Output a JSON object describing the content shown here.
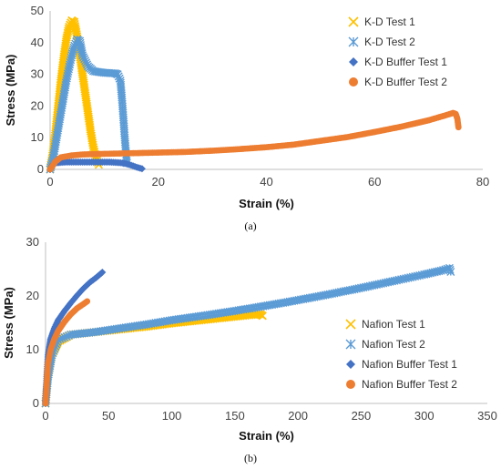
{
  "chart_data": [
    {
      "type": "scatter",
      "caption": "(a)",
      "xlabel": "Strain (%)",
      "ylabel": "Stress (MPa)",
      "xlim": [
        0,
        80
      ],
      "ylim": [
        0,
        50
      ],
      "x_ticks": [
        0,
        20,
        40,
        60,
        80
      ],
      "y_ticks": [
        0,
        10,
        20,
        30,
        40,
        50
      ],
      "grid": false,
      "legend_position": "top-right",
      "series": [
        {
          "name": "K-D Test 1",
          "marker": "x",
          "color": "#FFC000",
          "points": [
            [
              0,
              0
            ],
            [
              0.5,
              5
            ],
            [
              1,
              12
            ],
            [
              1.5,
              20
            ],
            [
              2,
              28
            ],
            [
              2.5,
              35
            ],
            [
              3,
              41
            ],
            [
              3.5,
              45
            ],
            [
              4,
              47
            ],
            [
              4.5,
              46.5
            ],
            [
              5,
              42
            ],
            [
              5.5,
              36
            ],
            [
              6,
              30
            ],
            [
              6.5,
              24
            ],
            [
              7,
              18
            ],
            [
              7.5,
              12
            ],
            [
              8,
              7
            ],
            [
              8.5,
              3.5
            ],
            [
              9,
              1.5
            ]
          ]
        },
        {
          "name": "K-D Test 2",
          "marker": "asterisk",
          "color": "#5B9BD5",
          "points": [
            [
              0,
              0
            ],
            [
              0.5,
              3
            ],
            [
              1,
              8
            ],
            [
              2,
              18
            ],
            [
              3,
              28
            ],
            [
              4,
              36
            ],
            [
              4.5,
              39
            ],
            [
              5,
              41
            ],
            [
              5.5,
              40.5
            ],
            [
              6,
              36
            ],
            [
              7,
              32.5
            ],
            [
              8,
              31
            ],
            [
              9,
              30.7
            ],
            [
              10,
              30.5
            ],
            [
              11,
              30.4
            ],
            [
              12,
              30.3
            ],
            [
              12.5,
              30
            ],
            [
              13,
              28
            ],
            [
              13.3,
              22
            ],
            [
              13.6,
              15
            ],
            [
              13.8,
              10
            ],
            [
              14,
              6
            ],
            [
              14.2,
              2
            ]
          ]
        },
        {
          "name": "K-D Buffer Test 1",
          "marker": "diamond",
          "color": "#4472C4",
          "points": [
            [
              0,
              0
            ],
            [
              0.5,
              1.5
            ],
            [
              1,
              2
            ],
            [
              2,
              2.2
            ],
            [
              3,
              2.3
            ],
            [
              4,
              2.3
            ],
            [
              5,
              2.3
            ],
            [
              6,
              2.3
            ],
            [
              7,
              2.3
            ],
            [
              8,
              2.3
            ],
            [
              9,
              2.3
            ],
            [
              10,
              2.3
            ],
            [
              11,
              2.3
            ],
            [
              12,
              2.2
            ],
            [
              13,
              2.1
            ],
            [
              14,
              1.8
            ],
            [
              15,
              1.3
            ],
            [
              16,
              0.7
            ],
            [
              17,
              0.2
            ]
          ]
        },
        {
          "name": "K-D Buffer Test 2",
          "marker": "circle",
          "color": "#ED7D31",
          "points": [
            [
              0,
              0
            ],
            [
              1,
              2.5
            ],
            [
              2,
              3.8
            ],
            [
              4,
              4.4
            ],
            [
              6,
              4.7
            ],
            [
              10,
              4.9
            ],
            [
              15,
              5.1
            ],
            [
              20,
              5.3
            ],
            [
              25,
              5.5
            ],
            [
              30,
              5.9
            ],
            [
              35,
              6.4
            ],
            [
              40,
              7.0
            ],
            [
              45,
              7.8
            ],
            [
              50,
              9.0
            ],
            [
              55,
              10.2
            ],
            [
              60,
              11.8
            ],
            [
              65,
              13.5
            ],
            [
              70,
              15.5
            ],
            [
              73,
              17.0
            ],
            [
              74.5,
              17.8
            ],
            [
              75,
              17.5
            ],
            [
              75.3,
              16
            ],
            [
              75.5,
              13.3
            ]
          ]
        }
      ]
    },
    {
      "type": "scatter",
      "caption": "(b)",
      "xlabel": "Strain (%)",
      "ylabel": "Stress (MPa)",
      "xlim": [
        0,
        350
      ],
      "ylim": [
        0,
        30
      ],
      "x_ticks": [
        0,
        50,
        100,
        150,
        200,
        250,
        300,
        350
      ],
      "y_ticks": [
        0,
        10,
        20,
        30
      ],
      "grid": false,
      "legend_position": "bottom-right",
      "series": [
        {
          "name": "Nafion Test 1",
          "marker": "x",
          "color": "#FFC000",
          "points": [
            [
              0,
              0
            ],
            [
              2,
              5
            ],
            [
              5,
              9
            ],
            [
              10,
              11.5
            ],
            [
              20,
              12.8
            ],
            [
              40,
              13.3
            ],
            [
              60,
              13.8
            ],
            [
              80,
              14.3
            ],
            [
              100,
              14.9
            ],
            [
              120,
              15.4
            ],
            [
              140,
              15.9
            ],
            [
              160,
              16.4
            ],
            [
              170,
              16.6
            ],
            [
              172,
              16.3
            ]
          ]
        },
        {
          "name": "Nafion Test 2",
          "marker": "asterisk",
          "color": "#5B9BD5",
          "points": [
            [
              0,
              0
            ],
            [
              2,
              5
            ],
            [
              5,
              9
            ],
            [
              10,
              11.8
            ],
            [
              20,
              12.8
            ],
            [
              40,
              13.3
            ],
            [
              60,
              14.0
            ],
            [
              80,
              14.7
            ],
            [
              100,
              15.5
            ],
            [
              130,
              16.5
            ],
            [
              160,
              17.6
            ],
            [
              190,
              18.8
            ],
            [
              220,
              20.1
            ],
            [
              250,
              21.5
            ],
            [
              280,
              23.0
            ],
            [
              300,
              24.0
            ],
            [
              315,
              24.8
            ],
            [
              320,
              25.2
            ],
            [
              321,
              24.5
            ]
          ]
        },
        {
          "name": "Nafion Buffer Test 1",
          "marker": "diamond",
          "color": "#4472C4",
          "points": [
            [
              0,
              0
            ],
            [
              1,
              5
            ],
            [
              2,
              9
            ],
            [
              4,
              12
            ],
            [
              7,
              14
            ],
            [
              10,
              15.5
            ],
            [
              15,
              17.2
            ],
            [
              20,
              18.7
            ],
            [
              25,
              20.1
            ],
            [
              30,
              21.4
            ],
            [
              35,
              22.5
            ],
            [
              40,
              23.4
            ],
            [
              43,
              24
            ],
            [
              45,
              24.4
            ]
          ]
        },
        {
          "name": "Nafion Buffer Test 2",
          "marker": "circle",
          "color": "#ED7D31",
          "points": [
            [
              0,
              0
            ],
            [
              1,
              4
            ],
            [
              2,
              7.5
            ],
            [
              4,
              10
            ],
            [
              7,
              12
            ],
            [
              10,
              13.5
            ],
            [
              15,
              15.2
            ],
            [
              20,
              16.6
            ],
            [
              25,
              17.7
            ],
            [
              30,
              18.5
            ],
            [
              33,
              19
            ]
          ]
        }
      ]
    }
  ]
}
